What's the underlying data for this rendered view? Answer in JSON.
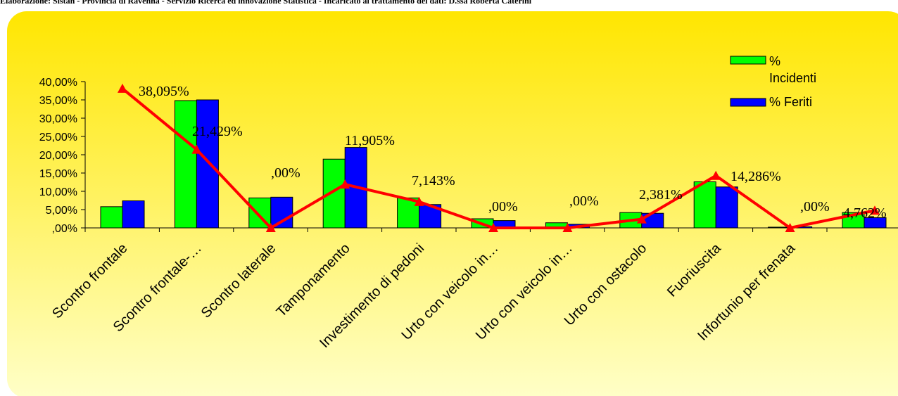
{
  "header_text": "Elaborazione: Sistan - Provincia di Ravenna - Servizio Ricerca ed innovazione Statistica - Incaricato al trattamento dei dati: D.ssa Roberta Caterini",
  "chart_data": {
    "type": "bar",
    "categories": [
      "Scontro frontale",
      "Scontro frontale-…",
      "Scontro laterale",
      "Tamponamento",
      "Investimento di pedoni",
      "Urto con veicolo in…",
      "Urto con veicolo in…",
      "Urto con ostacolo",
      "Fuoriuscita",
      "Infortunio per frenata",
      ""
    ],
    "series": [
      {
        "name": "% Incidenti",
        "type": "bar",
        "color": "#00ff00",
        "values": [
          5.8,
          34.8,
          8.2,
          18.8,
          8.2,
          2.5,
          1.4,
          4.2,
          12.6,
          0.2,
          4.2
        ]
      },
      {
        "name": "% Feriti",
        "type": "bar",
        "color": "#0000ff",
        "values": [
          7.4,
          35.0,
          8.4,
          22.0,
          6.4,
          2.0,
          1.0,
          4.0,
          11.2,
          0.3,
          2.8
        ]
      },
      {
        "name": "",
        "type": "line",
        "color": "#ff0000",
        "values": [
          38.095,
          21.429,
          0.0,
          11.905,
          7.143,
          0.0,
          0.0,
          2.381,
          14.286,
          0.0,
          4.762
        ],
        "labels": [
          "38,095%",
          "21,429%",
          ",00%",
          "11,905%",
          "7,143%",
          ",00%",
          ",00%",
          "2,381%",
          "14,286%",
          ",00%",
          "4,762%"
        ]
      }
    ],
    "y_ticks": [
      ",00%",
      "5,00%",
      "10,00%",
      "15,00%",
      "20,00%",
      "25,00%",
      "30,00%",
      "35,00%",
      "40,00%"
    ],
    "ylim": [
      0,
      40
    ],
    "legend": {
      "position": "top-right",
      "entries": [
        {
          "label": "% Incidenti",
          "color": "#00ff00"
        },
        {
          "label": "% Feriti",
          "color": "#0000ff"
        }
      ]
    },
    "background": {
      "gradient_top": "#ffe600",
      "gradient_bottom": "#ffffc8"
    },
    "grid": false
  }
}
